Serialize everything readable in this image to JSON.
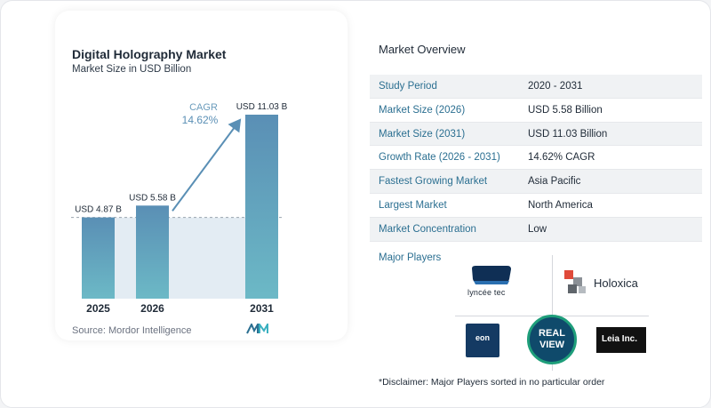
{
  "chart_data": {
    "type": "bar",
    "title": "Digital Holography Market",
    "subtitle": "Market Size in USD Billion",
    "categories": [
      "2025",
      "2026",
      "2031"
    ],
    "values": [
      4.87,
      5.58,
      11.03
    ],
    "value_labels": [
      "USD 4.87 B",
      "USD 5.58 B",
      "USD 11.03 B"
    ],
    "ylim": [
      0,
      11.03
    ],
    "grid": false,
    "annotation": {
      "label": "CAGR",
      "value": "14.62%"
    },
    "colors": {
      "bar_top": "#5a8fb5",
      "bar_bottom": "#6cb9c6",
      "shade": "#e3ecf3",
      "arrow": "#5a8fb5",
      "cagr": "#6b9cbc"
    }
  },
  "source": "Source:  Mordor Intelligence",
  "overview": {
    "title": "Market Overview",
    "rows": [
      {
        "label": "Study Period",
        "value": "2020 - 2031"
      },
      {
        "label": "Market Size (2026)",
        "value": "USD 5.58 Billion"
      },
      {
        "label": "Market Size (2031)",
        "value": "USD 11.03 Billion"
      },
      {
        "label": "Growth Rate (2026 - 2031)",
        "value": "14.62% CAGR"
      },
      {
        "label": "Fastest Growing Market",
        "value": "Asia Pacific"
      },
      {
        "label": "Largest Market",
        "value": "North America"
      },
      {
        "label": "Market Concentration",
        "value": "Low"
      }
    ]
  },
  "major_players": {
    "title": "Major Players",
    "logos": {
      "lyncee": "lyncée tec",
      "holoxica": "Holoxica",
      "realview_line1": "REAL",
      "realview_line2": "VIEW",
      "eon": "eon",
      "leia": "Leia Inc."
    }
  },
  "disclaimer": "*Disclaimer: Major Players sorted in no particular order"
}
